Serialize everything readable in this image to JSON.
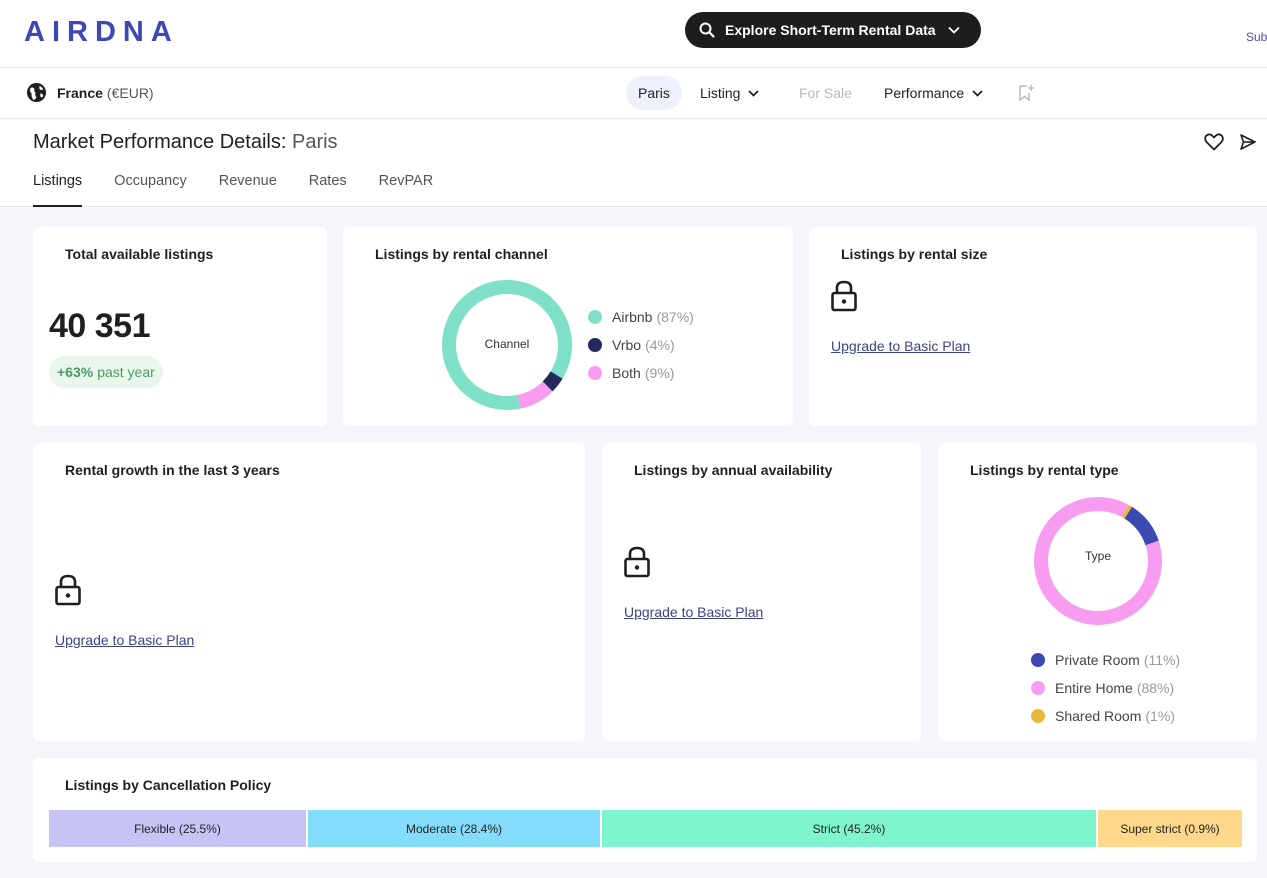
{
  "header": {
    "logo_text": "AIRDNA",
    "explore_label": "Explore Short-Term Rental Data",
    "sub_link": "Sub"
  },
  "subnav": {
    "region_name": "France",
    "currency": "(€EUR)",
    "city": "Paris",
    "listing": "Listing",
    "for_sale": "For Sale",
    "performance": "Performance"
  },
  "page": {
    "title_prefix": "Market Performance Details:",
    "title_city": "Paris",
    "tabs": [
      "Listings",
      "Occupancy",
      "Revenue",
      "Rates",
      "RevPAR"
    ]
  },
  "cards": {
    "total": {
      "title": "Total available listings",
      "value": "40 351",
      "growth_pct": "+63%",
      "growth_label": "past year"
    },
    "channel": {
      "title": "Listings by rental channel",
      "center_label": "Channel",
      "items": [
        {
          "label": "Airbnb",
          "pct": "(87%)",
          "color": "#7fe0c8"
        },
        {
          "label": "Vrbo",
          "pct": "(4%)",
          "color": "#252a5e"
        },
        {
          "label": "Both",
          "pct": "(9%)",
          "color": "#f79cf1"
        }
      ]
    },
    "size": {
      "title": "Listings by rental size",
      "upgrade": "Upgrade to Basic Plan"
    },
    "growth": {
      "title": "Rental growth in the last 3 years",
      "upgrade": "Upgrade to Basic Plan"
    },
    "availability": {
      "title": "Listings by annual availability",
      "upgrade": "Upgrade to Basic Plan"
    },
    "type": {
      "title": "Listings by rental type",
      "center_label": "Type",
      "items": [
        {
          "label": "Private Room",
          "pct": "(11%)",
          "color": "#3b4ab0"
        },
        {
          "label": "Entire Home",
          "pct": "(88%)",
          "color": "#f79cf1"
        },
        {
          "label": "Shared Room",
          "pct": "(1%)",
          "color": "#e8b93a"
        }
      ]
    },
    "cancellation": {
      "title": "Listings by Cancellation Policy",
      "segments": [
        {
          "label": "Flexible (25.5%)",
          "value": 25.5,
          "color": "#c8c3f5"
        },
        {
          "label": "Moderate (28.4%)",
          "value": 28.4,
          "color": "#84dcfb"
        },
        {
          "label": "Strict (45.2%)",
          "value": 45.2,
          "color": "#7ef4cf"
        },
        {
          "label": "Super strict (0.9%)",
          "value": 0.9,
          "color": "#fdd88a"
        }
      ]
    }
  }
}
